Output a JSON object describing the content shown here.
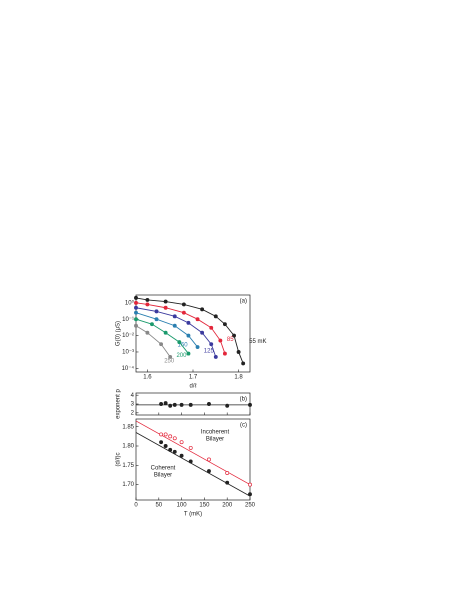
{
  "chart_data": [
    {
      "type": "scatter",
      "panel_label": "(a)",
      "y_label": "G(0) (μS)",
      "x_label": "d/ℓ",
      "log_y": true,
      "xlim": [
        1.575,
        1.825
      ],
      "ylim": [
        6e-05,
        3
      ],
      "xticks": [
        1.6,
        1.7,
        1.8
      ],
      "yticks": [
        {
          "value": 1,
          "label": "10⁰"
        },
        {
          "value": 0.1,
          "label": "10⁻¹"
        },
        {
          "value": 0.01,
          "label": "10⁻²"
        },
        {
          "value": 0.001,
          "label": "10⁻³"
        },
        {
          "value": 0.0001,
          "label": "10⁻⁴"
        }
      ],
      "series": [
        {
          "name": "55 mK",
          "color": "#222222",
          "x": [
            1.575,
            1.6,
            1.64,
            1.68,
            1.72,
            1.75,
            1.77,
            1.79,
            1.8,
            1.81
          ],
          "values": [
            2,
            1.5,
            1.2,
            0.8,
            0.4,
            0.15,
            0.05,
            0.01,
            0.001,
            0.0002
          ]
        },
        {
          "name": "85",
          "color": "#e3263a",
          "x": [
            1.575,
            1.6,
            1.64,
            1.68,
            1.71,
            1.74,
            1.76,
            1.77
          ],
          "values": [
            1,
            0.8,
            0.5,
            0.25,
            0.1,
            0.03,
            0.005,
            0.0008
          ]
        },
        {
          "name": "125",
          "color": "#3b3a9e",
          "x": [
            1.575,
            1.62,
            1.66,
            1.69,
            1.72,
            1.74,
            1.75
          ],
          "values": [
            0.5,
            0.3,
            0.15,
            0.06,
            0.015,
            0.003,
            0.0005
          ]
        },
        {
          "name": "160",
          "color": "#2a7fb0",
          "x": [
            1.575,
            1.62,
            1.66,
            1.69,
            1.71
          ],
          "values": [
            0.25,
            0.1,
            0.04,
            0.01,
            0.002
          ]
        },
        {
          "name": "200",
          "color": "#1a9a6c",
          "x": [
            1.575,
            1.61,
            1.64,
            1.67,
            1.69
          ],
          "values": [
            0.1,
            0.05,
            0.015,
            0.004,
            0.0008
          ]
        },
        {
          "name": "250",
          "color": "#888888",
          "x": [
            1.575,
            1.6,
            1.63,
            1.65
          ],
          "values": [
            0.04,
            0.015,
            0.003,
            0.0005
          ]
        }
      ]
    },
    {
      "type": "scatter",
      "panel_label": "(b)",
      "y_label": "exponent p",
      "ylim": [
        1.75,
        4.25
      ],
      "yticks": [
        4,
        3,
        2
      ],
      "fit_value": 2.9,
      "series": [
        {
          "color": "#222222",
          "x": [
            55,
            65,
            75,
            85,
            100,
            120,
            160,
            200,
            250
          ],
          "values": [
            3.0,
            3.1,
            2.8,
            2.9,
            2.9,
            2.9,
            3.0,
            2.8,
            2.9
          ]
        }
      ]
    },
    {
      "type": "scatter",
      "panel_label": "(c)",
      "y_label": "(d/ℓ)c",
      "x_label": "T (mK)",
      "xlim": [
        0,
        250
      ],
      "ylim": [
        1.66,
        1.87
      ],
      "xticks": [
        0,
        50,
        100,
        150,
        200,
        250
      ],
      "yticks": [
        1.85,
        {
          "value": 1.8,
          "label": "1.80"
        },
        1.75,
        {
          "value": 1.7,
          "label": "1.70"
        }
      ],
      "annotations": [
        "Incoherent",
        "Bilayer",
        "Coherent",
        "Bilayer"
      ],
      "series": [
        {
          "color": "#222222",
          "filled": true,
          "x": [
            55,
            65,
            75,
            85,
            100,
            120,
            160,
            200,
            250
          ],
          "values": [
            1.81,
            1.8,
            1.79,
            1.785,
            1.775,
            1.76,
            1.735,
            1.705,
            1.675
          ]
        },
        {
          "color": "#e3263a",
          "filled": false,
          "x": [
            55,
            65,
            75,
            85,
            100,
            120,
            160,
            200,
            250
          ],
          "values": [
            1.83,
            1.83,
            1.825,
            1.82,
            1.81,
            1.795,
            1.765,
            1.73,
            1.7
          ]
        }
      ],
      "fits": [
        {
          "color": "#222222",
          "x": [
            0,
            250
          ],
          "values": [
            1.835,
            1.67
          ]
        },
        {
          "color": "#e3263a",
          "x": [
            0,
            250
          ],
          "values": [
            1.865,
            1.7
          ]
        }
      ]
    }
  ]
}
